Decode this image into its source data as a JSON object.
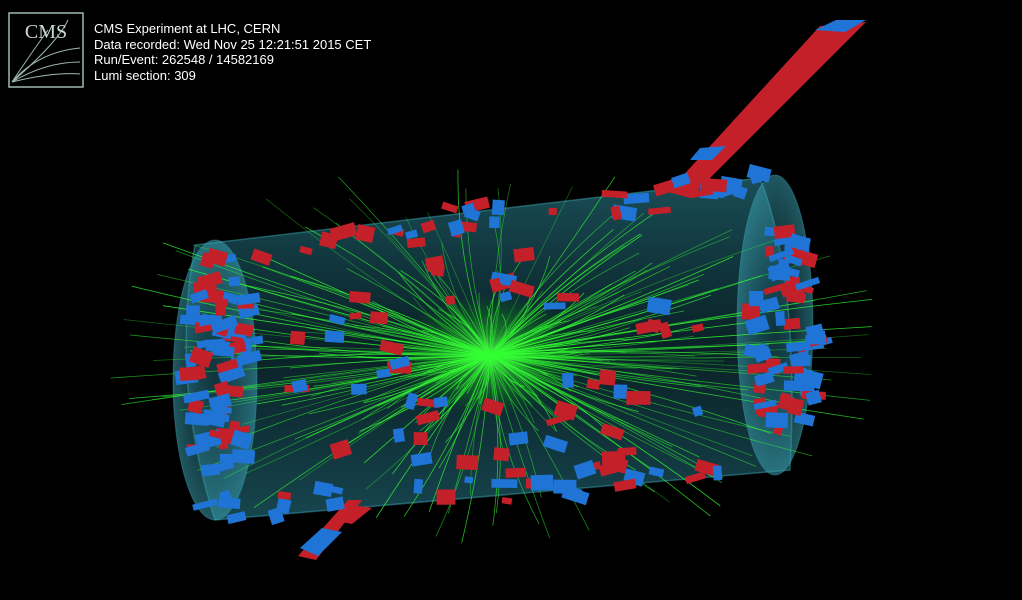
{
  "logo": {
    "text": "CMS",
    "icon": "cms-logo-icon"
  },
  "event_info": {
    "title": "CMS Experiment at LHC, CERN",
    "date": "Data recorded: Wed Nov 25 12:21:51 2015 CET",
    "run_event": "Run/Event: 262548 / 14582169",
    "lumi": "Lumi section: 309"
  },
  "colors": {
    "background": "#000000",
    "tracks": "#33ff33",
    "hcal": "#1f74d6",
    "ecal": "#c4202a",
    "detector_volume": "#2a8a9a",
    "logo_stroke": "#9fb8b0"
  }
}
